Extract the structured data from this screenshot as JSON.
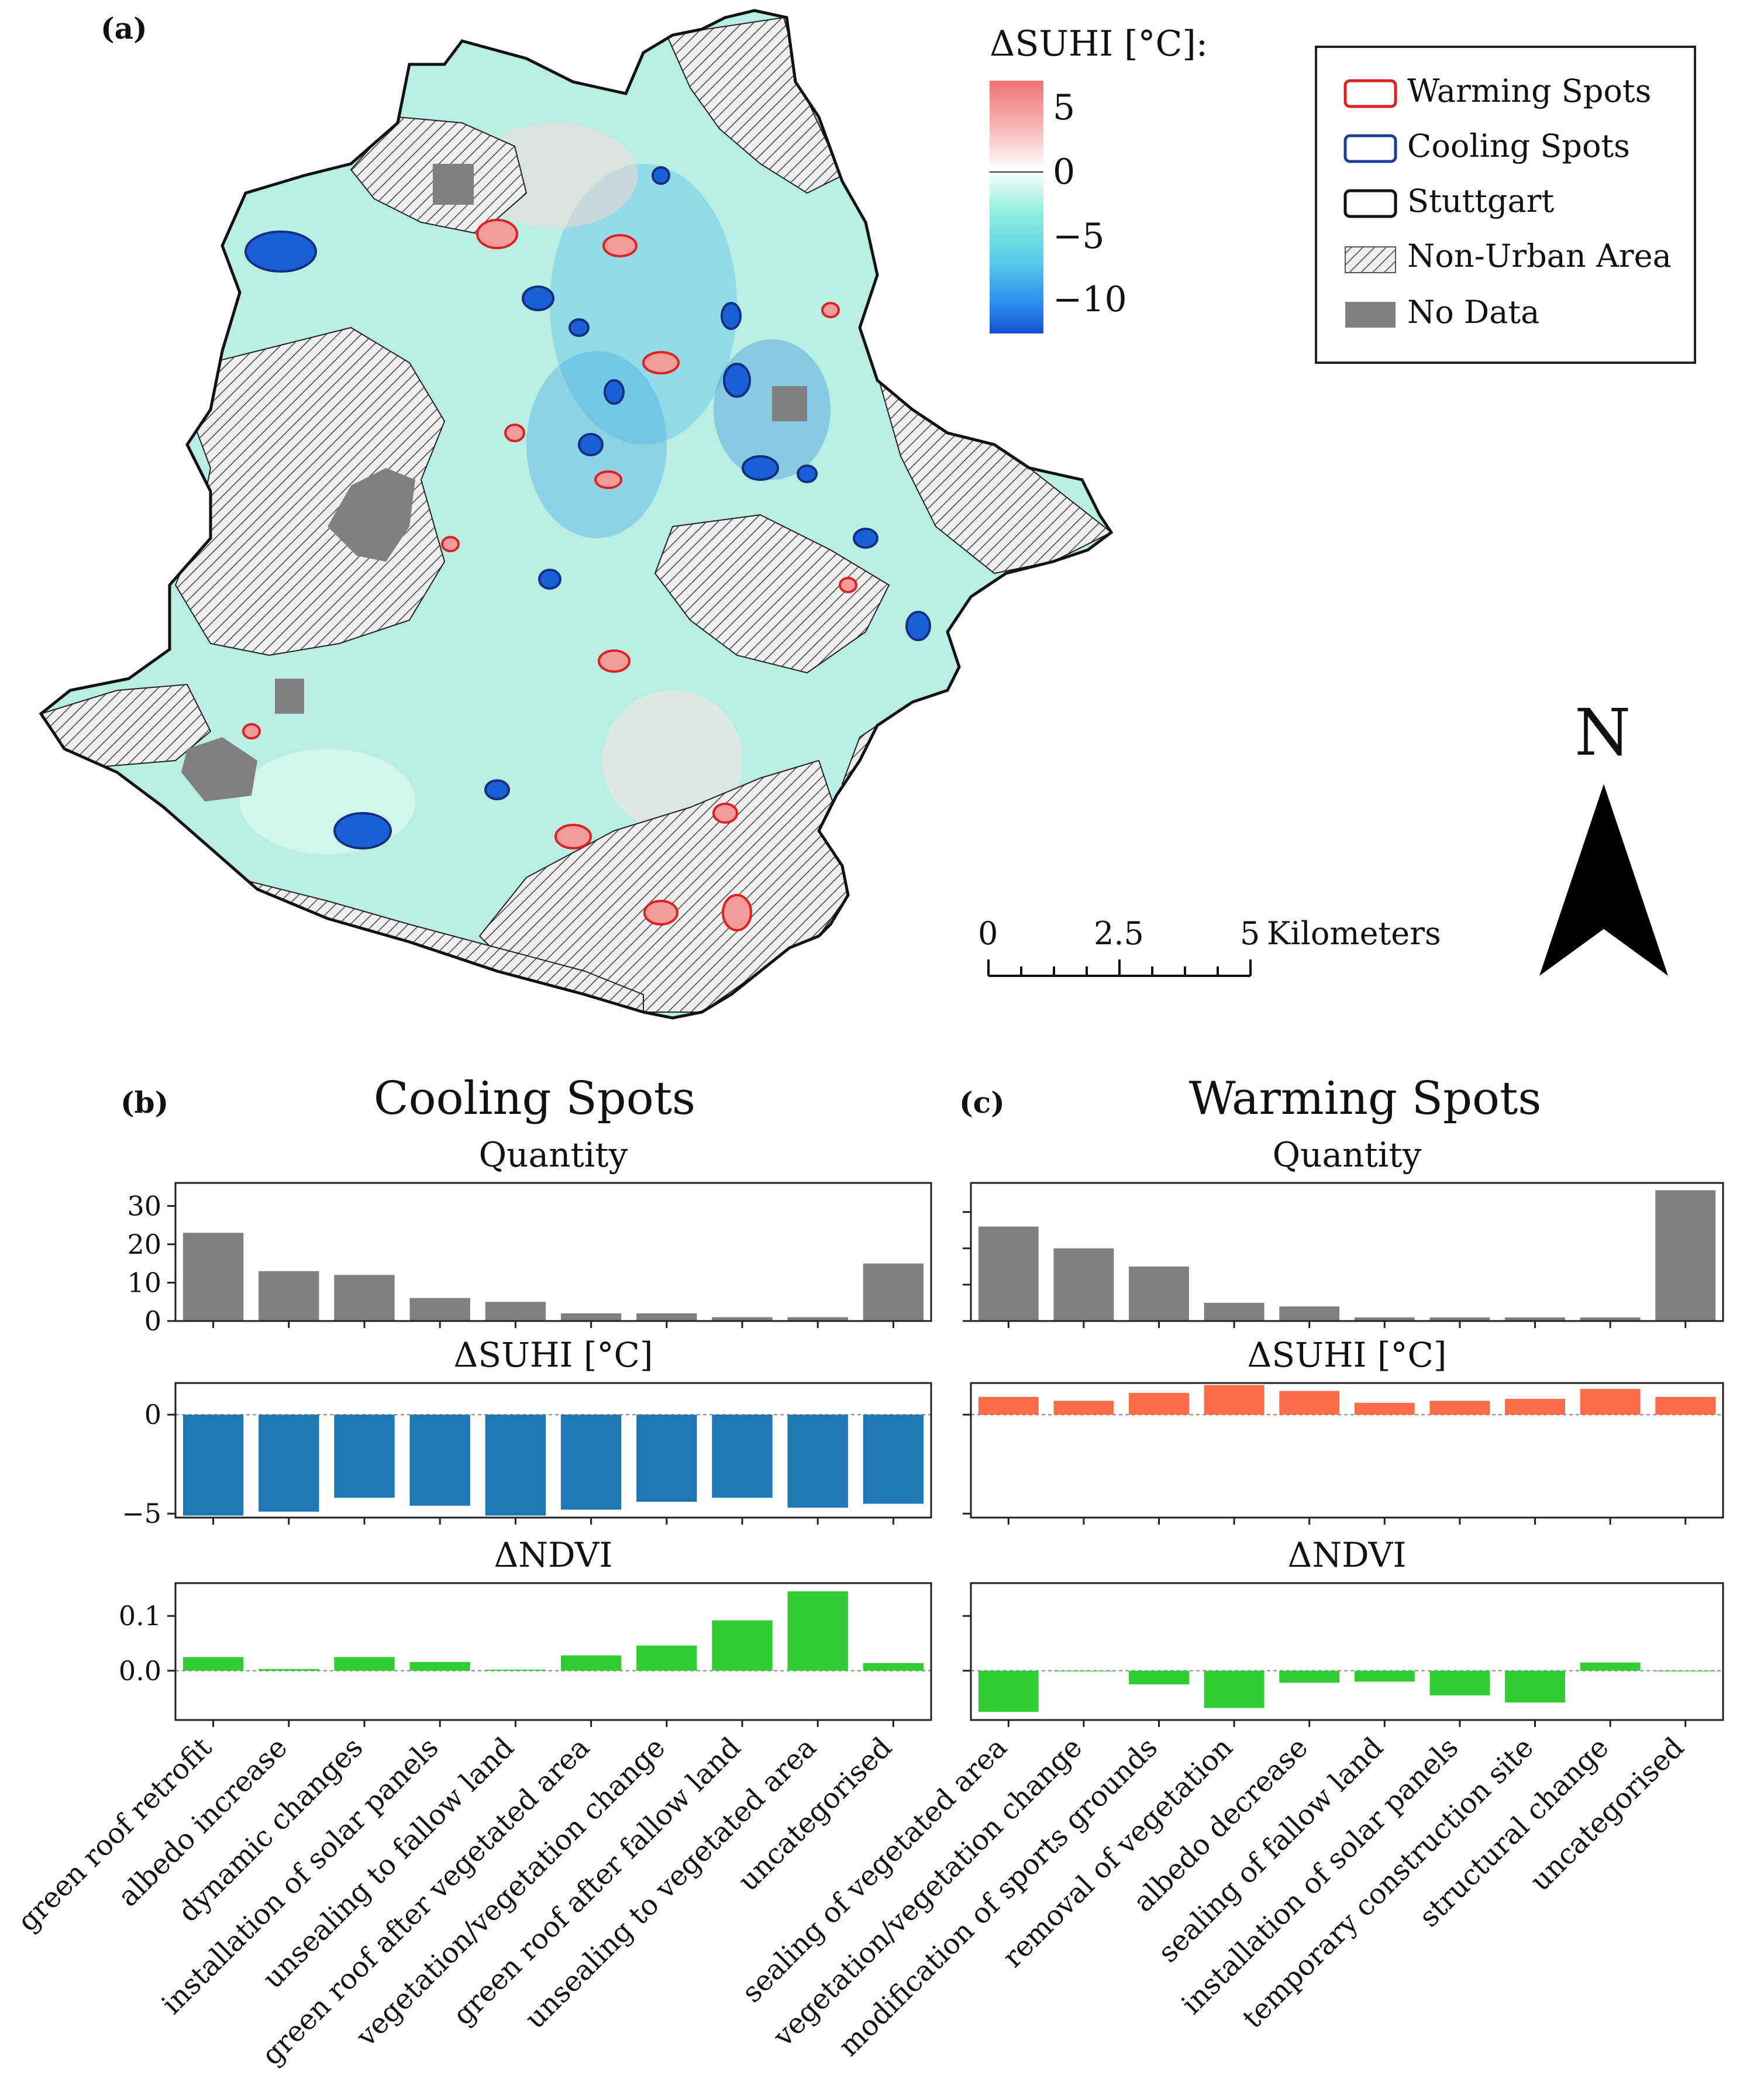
{
  "panels": {
    "a_label": "(a)",
    "b_label": "(b)",
    "c_label": "(c)"
  },
  "map": {
    "colorbar": {
      "title": "ΔSUHI [°C]:",
      "ticks": [
        "5",
        "0",
        "−5",
        "−10"
      ],
      "colors": {
        "warm": "#f07a7a",
        "neutral": "#ffffff",
        "cool1": "#6fe0cf",
        "cool2": "#2b9be0",
        "cool3": "#1a5fd6"
      }
    },
    "legend": [
      {
        "label": "Warming Spots",
        "icon": "red-outline-swatch",
        "color": "#e02020"
      },
      {
        "label": "Cooling Spots",
        "icon": "blue-outline-swatch",
        "color": "#1a3f9a"
      },
      {
        "label": "Stuttgart",
        "icon": "black-outline-swatch",
        "color": "#111111"
      },
      {
        "label": "Non-Urban Area",
        "icon": "hatched-swatch",
        "color": "#555555"
      },
      {
        "label": "No Data",
        "icon": "gray-fill-swatch",
        "color": "#808080"
      }
    ],
    "scalebar": {
      "ticks": [
        "0",
        "2.5",
        "5"
      ],
      "unit": "Kilometers"
    },
    "north_label": "N"
  },
  "chart_data": [
    {
      "panel": "b",
      "group_title": "Cooling Spots",
      "categories": [
        "green roof retrofit",
        "albedo increase",
        "dynamic changes",
        "installation of solar panels",
        "unsealing to fallow land",
        "green roof after vegetated area",
        "vegetation/vegetation change",
        "green roof after fallow land",
        "unsealing to vegetated area",
        "uncategorised"
      ],
      "subplots": [
        {
          "type": "bar",
          "title": "Quantity",
          "values": [
            23,
            13,
            12,
            6,
            5,
            2,
            2,
            1,
            1,
            15
          ],
          "ylim": [
            0,
            36
          ],
          "yticks": [
            0,
            10,
            20,
            30
          ],
          "ytick_labels": [
            "0",
            "10",
            "20",
            "30"
          ],
          "color": "#808080"
        },
        {
          "type": "bar",
          "title": "ΔSUHI [°C]",
          "values": [
            -5.1,
            -4.9,
            -4.2,
            -4.6,
            -5.1,
            -4.8,
            -4.4,
            -4.2,
            -4.7,
            -4.5
          ],
          "ylim": [
            -5.2,
            1.6
          ],
          "yticks": [
            0,
            -5
          ],
          "ytick_labels": [
            "0",
            "−5"
          ],
          "color": "#1f77b4",
          "zero_line": true
        },
        {
          "type": "bar",
          "title": "ΔNDVI",
          "values": [
            0.025,
            0.003,
            0.025,
            0.016,
            0.002,
            0.028,
            0.046,
            0.092,
            0.145,
            0.014
          ],
          "ylim": [
            -0.09,
            0.16
          ],
          "yticks": [
            0.1,
            0.0
          ],
          "ytick_labels": [
            "0.1",
            "0.0"
          ],
          "color": "#32cd32",
          "zero_line": true
        }
      ]
    },
    {
      "panel": "c",
      "group_title": "Warming Spots",
      "categories": [
        "sealing of vegetated area",
        "vegetation/vegetation change",
        "modification of sports grounds",
        "removal of vegetation",
        "albedo decrease",
        "sealing of fallow land",
        "installation of solar panels",
        "temporary construction site",
        "structural change",
        "uncategorised"
      ],
      "subplots": [
        {
          "type": "bar",
          "title": "Quantity",
          "values": [
            26,
            20,
            15,
            5,
            4,
            1,
            1,
            1,
            1,
            36
          ],
          "ylim": [
            0,
            38
          ],
          "yticks": [
            0,
            10,
            20,
            30
          ],
          "ytick_labels": [
            "",
            "",
            "",
            ""
          ],
          "color": "#808080"
        },
        {
          "type": "bar",
          "title": "ΔSUHI [°C]",
          "values": [
            0.9,
            0.7,
            1.1,
            1.5,
            1.2,
            0.6,
            0.7,
            0.8,
            1.3,
            0.9
          ],
          "ylim": [
            -5.2,
            1.6
          ],
          "yticks": [
            0,
            -5
          ],
          "ytick_labels": [
            "",
            ""
          ],
          "color": "#fa6b4a",
          "zero_line": true
        },
        {
          "type": "bar",
          "title": "ΔNDVI",
          "values": [
            -0.075,
            0.0,
            -0.025,
            -0.068,
            -0.022,
            -0.02,
            -0.045,
            -0.058,
            0.015,
            0.0
          ],
          "ylim": [
            -0.09,
            0.16
          ],
          "yticks": [
            0.1,
            0.0
          ],
          "ytick_labels": [
            "",
            ""
          ],
          "color": "#32cd32",
          "zero_line": true
        }
      ]
    }
  ]
}
